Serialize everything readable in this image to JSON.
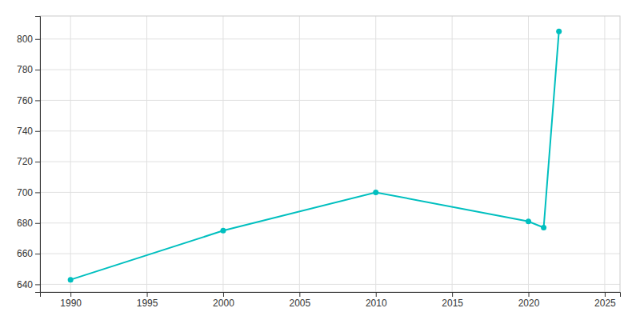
{
  "chart_data": {
    "type": "line",
    "x": [
      1990,
      2000,
      2010,
      2020,
      2021,
      2022
    ],
    "values": [
      643,
      675,
      700,
      681,
      677,
      805
    ],
    "color": "#00BFBF",
    "marker": "circle",
    "xlim": [
      1988,
      2026
    ],
    "ylim": [
      635,
      815
    ],
    "xticks": [
      1990,
      1995,
      2000,
      2005,
      2010,
      2015,
      2020,
      2025
    ],
    "yticks": [
      640,
      660,
      680,
      700,
      720,
      740,
      760,
      780,
      800
    ],
    "grid": true
  }
}
